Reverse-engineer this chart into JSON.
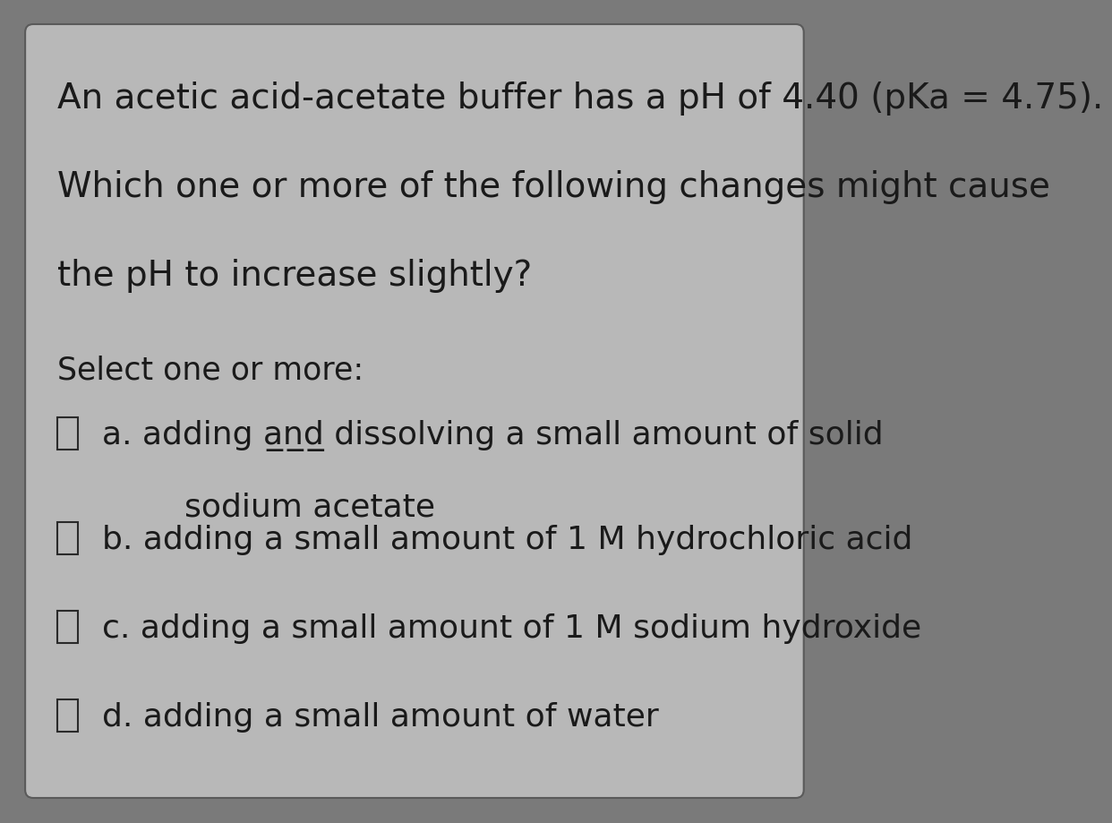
{
  "background_color": "#7a7a7a",
  "panel_color": "#b8b8b8",
  "text_color": "#1a1a1a",
  "title_text_line1": "An acetic acid-acetate buffer has a pH of 4.40 (pKa = 4.75).",
  "title_text_line2": "Which one or more of the following changes might cause",
  "title_text_line3": "the pH to increase slightly?",
  "select_label": "Select one or more:",
  "option_a_line1": "a. adding a̲n̲d̲ dissolving a small amount of solid",
  "option_a_line2": "        sodium acetate",
  "option_b": "b. adding a small amount of 1 M hydrochloric acid",
  "option_c": "c. adding a small amount of 1 M sodium hydroxide",
  "option_d": "d. adding a small amount of water",
  "font_size_title": 28,
  "font_size_select": 25,
  "font_size_options": 26
}
